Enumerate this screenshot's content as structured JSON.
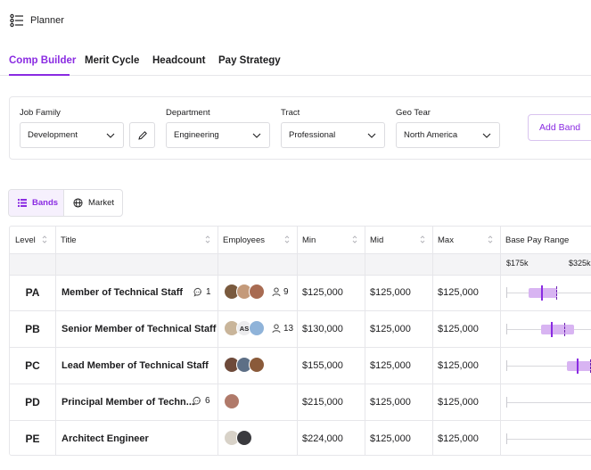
{
  "app": {
    "title": "Planner",
    "icon": "list-icon"
  },
  "tabs": [
    {
      "label": "Comp Builder",
      "active": true
    },
    {
      "label": "Merit Cycle",
      "active": false
    },
    {
      "label": "Headcount",
      "active": false
    },
    {
      "label": "Pay Strategy",
      "active": false
    }
  ],
  "filters": {
    "job_family": {
      "label": "Job Family",
      "value": "Development"
    },
    "department": {
      "label": "Department",
      "value": "Engineering"
    },
    "tract": {
      "label": "Tract",
      "value": "Professional"
    },
    "geo": {
      "label": "Geo Tear",
      "value": "North America"
    }
  },
  "add_band_label": "Add Band",
  "view_toggle": {
    "bands": "Bands",
    "market": "Market",
    "selected": "Bands"
  },
  "table": {
    "columns": [
      "Level",
      "Title",
      "Employees",
      "Min",
      "Mid",
      "Max",
      "Base Pay Range"
    ],
    "range_axis": {
      "min_label": "$175k",
      "max_label": "$325k"
    },
    "rows": [
      {
        "level": "PA",
        "title": "Member of Technical Staff",
        "comments": "1",
        "people": "9",
        "min": "$125,000",
        "mid": "$125,000",
        "max": "$125,000",
        "band_start": 0.14,
        "band_end": 0.5,
        "mid_mark": 0.3,
        "market_mark": 0.48
      },
      {
        "level": "PB",
        "title": "Senior Member of Technical Staff",
        "comments": "",
        "people": "13",
        "min": "$130,000",
        "mid": "$125,000",
        "max": "$125,000",
        "band_start": 0.3,
        "band_end": 0.7,
        "mid_mark": 0.42,
        "market_mark": 0.58,
        "initials": "AS"
      },
      {
        "level": "PC",
        "title": "Lead Member of Technical Staff",
        "comments": "",
        "people": "",
        "min": "$155,000",
        "mid": "$125,000",
        "max": "$125,000",
        "band_start": 0.62,
        "band_end": 1.0,
        "mid_mark": 0.74,
        "market_mark": 0.9
      },
      {
        "level": "PD",
        "title": "Principal Member of Techn...",
        "comments": "6",
        "people": "",
        "min": "$215,000",
        "mid": "$125,000",
        "max": "$125,000"
      },
      {
        "level": "PE",
        "title": "Architect Engineer",
        "comments": "",
        "people": "",
        "min": "$224,000",
        "mid": "$125,000",
        "max": "$125,000"
      }
    ]
  },
  "colors": {
    "accent": "#8a2be2",
    "band": "#d8b4f2",
    "border": "#e6e6ea"
  }
}
